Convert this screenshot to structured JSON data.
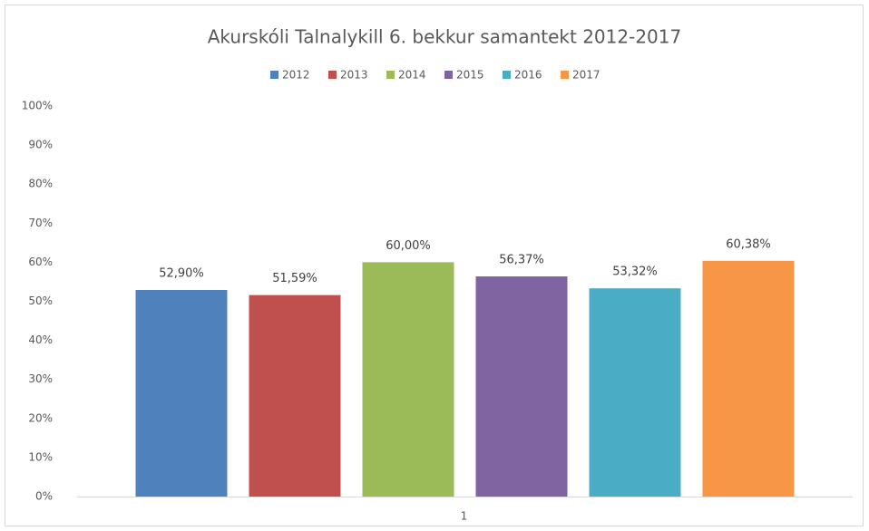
{
  "chart_data": {
    "type": "bar",
    "title": "Akurskóli Talnalykill 6. bekkur samantekt 2012-2017",
    "categories": [
      "1"
    ],
    "series": [
      {
        "name": "2012",
        "color": "#4f81bd",
        "values": [
          52.9
        ],
        "value_labels": [
          "52,90%"
        ]
      },
      {
        "name": "2013",
        "color": "#c0504d",
        "values": [
          51.59
        ],
        "value_labels": [
          "51,59%"
        ]
      },
      {
        "name": "2014",
        "color": "#9bbb59",
        "values": [
          60.0
        ],
        "value_labels": [
          "60,00%"
        ]
      },
      {
        "name": "2015",
        "color": "#8064a2",
        "values": [
          56.37
        ],
        "value_labels": [
          "56,37%"
        ]
      },
      {
        "name": "2016",
        "color": "#4bacc6",
        "values": [
          53.32
        ],
        "value_labels": [
          "53,32%"
        ]
      },
      {
        "name": "2017",
        "color": "#f79646",
        "values": [
          60.38
        ],
        "value_labels": [
          "60,38%"
        ]
      }
    ],
    "ylim": [
      0,
      100
    ],
    "yticks": [
      {
        "value": 0,
        "label": "0%"
      },
      {
        "value": 10,
        "label": "10%"
      },
      {
        "value": 20,
        "label": "20%"
      },
      {
        "value": 30,
        "label": "30%"
      },
      {
        "value": 40,
        "label": "40%"
      },
      {
        "value": 50,
        "label": "50%"
      },
      {
        "value": 60,
        "label": "60%"
      },
      {
        "value": 70,
        "label": "70%"
      },
      {
        "value": 80,
        "label": "80%"
      },
      {
        "value": 90,
        "label": "90%"
      },
      {
        "value": 100,
        "label": "100%"
      }
    ],
    "grid": false,
    "legend": "top"
  }
}
